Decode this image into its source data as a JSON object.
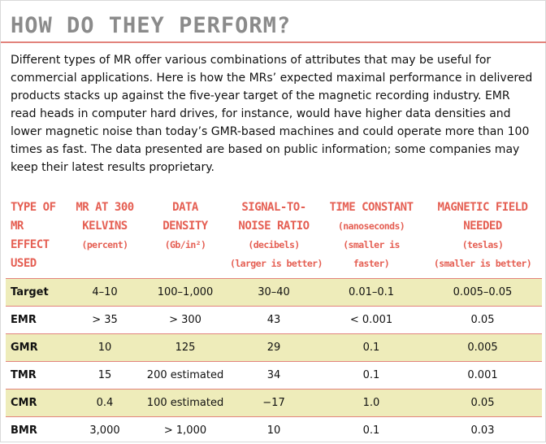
{
  "title": "HOW DO THEY PERFORM?",
  "intro": "Different types of MR offer various combinations of attributes that may be useful for commercial applications. Here is how the MRs’ expected maximal performance in delivered products stacks up against the five-year target of the magnetic recording industry. EMR read heads in computer hard drives, for instance, would have higher data densities and lower magnetic noise than today’s GMR-based machines and could operate more than 100 times as fast. The data presented are based on public information; some companies may keep their latest results proprietary.",
  "table": {
    "headers": [
      {
        "lines": [
          "TYPE OF",
          "MR",
          "EFFECT",
          "USED"
        ],
        "sub": []
      },
      {
        "lines": [
          "MR AT 300",
          "KELVINS"
        ],
        "sub": [
          "(percent)"
        ]
      },
      {
        "lines": [
          "DATA",
          "DENSITY"
        ],
        "sub": [
          "(Gb/in²)"
        ]
      },
      {
        "lines": [
          "SIGNAL-TO-",
          "NOISE RATIO"
        ],
        "sub": [
          "(decibels)",
          "(larger is better)"
        ]
      },
      {
        "lines": [
          "TIME CONSTANT"
        ],
        "sub": [
          "(nanoseconds)",
          "(smaller is",
          "faster)"
        ]
      },
      {
        "lines": [
          "MAGNETIC FIELD",
          "NEEDED"
        ],
        "sub": [
          "(teslas)",
          "(smaller is better)"
        ]
      }
    ],
    "rows": [
      [
        "Target",
        "4–10",
        "100–1,000",
        "30–40",
        "0.01–0.1",
        "0.005–0.05"
      ],
      [
        "EMR",
        "> 35",
        "> 300",
        "43",
        "< 0.001",
        "0.05"
      ],
      [
        "GMR",
        "10",
        "125",
        "29",
        "0.1",
        "0.005"
      ],
      [
        "TMR",
        "15",
        "200 estimated",
        "34",
        "0.1",
        "0.001"
      ],
      [
        "CMR",
        "0.4",
        "100 estimated",
        "−17",
        "1.0",
        "0.05"
      ],
      [
        "BMR",
        "3,000",
        "> 1,000",
        "10",
        "0.1",
        "0.03"
      ]
    ]
  },
  "colors": {
    "accent": "#e55f53",
    "title": "#8b8b8b",
    "row_shade": "#eeecba",
    "rule": "#e2837c"
  }
}
